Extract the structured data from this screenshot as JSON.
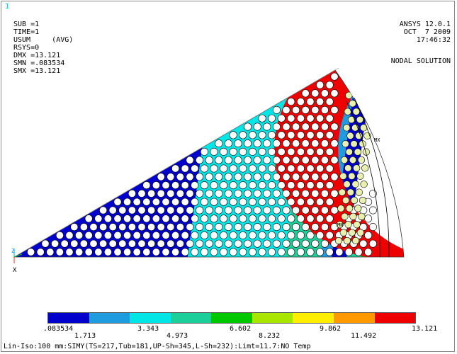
{
  "window_number": "1",
  "info_lines": [
    "SUB =1",
    "TIME=1",
    "USUM     (AVG)",
    "RSYS=0",
    "DMX =13.121",
    "SMN =.083534",
    "SMX =13.121"
  ],
  "header_lines": [
    "ANSYS 12.0.1",
    "OCT  7 2009",
    "17:46:32"
  ],
  "solution_label": "NODAL SOLUTION",
  "markers": {
    "mx": "MX",
    "mn": "MN"
  },
  "triad": {
    "z_label": "Z",
    "x_label": "X"
  },
  "legend": {
    "colors": [
      "#0000cc",
      "#1f9ce0",
      "#00e6e6",
      "#1ccf9a",
      "#00c800",
      "#a8e600",
      "#ffee00",
      "#ff9900",
      "#ee0000"
    ],
    "top_values": [
      ".083534",
      "3.343",
      "6.602",
      "9.862",
      "13.121"
    ],
    "bottom_values": [
      "1.713",
      "4.973",
      "8.232",
      "11.492"
    ]
  },
  "footer_text": "Lin-Iso:100 mm:SIMY(TS=217,Tub=181,UP-Sh=345,L-Sh=232):Limt=11.7:NO Temp"
}
